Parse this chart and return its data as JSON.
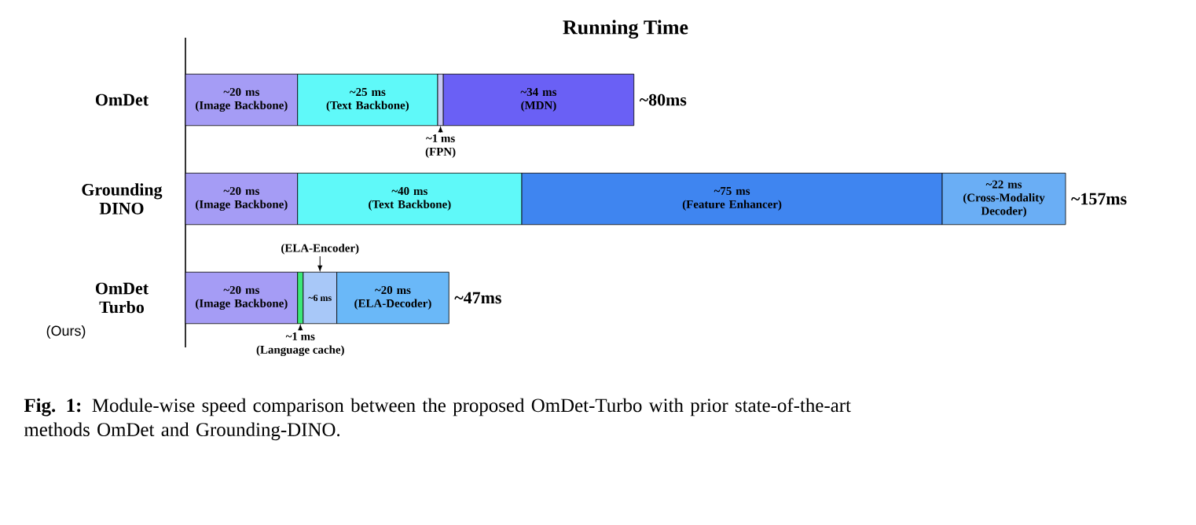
{
  "chart_data": {
    "type": "bar",
    "orientation": "horizontal",
    "stacked": true,
    "title": "Running Time",
    "categories": [
      "OmDet",
      "Grounding DINO",
      "OmDet Turbo"
    ],
    "series": [
      {
        "name": "(Image Backbone)",
        "color": "#a59cf5",
        "values": [
          20,
          20,
          20
        ],
        "value_labels": [
          "~20 ms",
          "~20 ms",
          "~20 ms"
        ]
      },
      {
        "name": "(Text Backbone)",
        "color": "#5ff9f9",
        "values": [
          25,
          40,
          null
        ],
        "value_labels": [
          "~25 ms",
          "~40 ms",
          null
        ]
      },
      {
        "name": "(FPN)",
        "color": "#c8c8f5",
        "values": [
          1,
          null,
          null
        ],
        "value_labels": [
          "~1 ms",
          null,
          null
        ]
      },
      {
        "name": "(MDN)",
        "color": "#6a60f5",
        "values": [
          34,
          null,
          null
        ],
        "value_labels": [
          "~34 ms",
          null,
          null
        ]
      },
      {
        "name": "(Feature Enhancer)",
        "color": "#3f85f0",
        "values": [
          null,
          75,
          null
        ],
        "value_labels": [
          null,
          "~75 ms",
          null
        ]
      },
      {
        "name": "(Cross-Modality Decoder)",
        "color": "#6aaef5",
        "values": [
          null,
          22,
          null
        ],
        "value_labels": [
          null,
          "~22 ms",
          null
        ]
      },
      {
        "name": "(Language cache)",
        "color": "#3ce878",
        "values": [
          null,
          null,
          1
        ],
        "value_labels": [
          null,
          null,
          "~1 ms"
        ]
      },
      {
        "name": "(ELA-Encoder)",
        "color": "#a8c8f8",
        "values": [
          null,
          null,
          6
        ],
        "value_labels": [
          null,
          null,
          "~6 ms"
        ]
      },
      {
        "name": "(ELA-Decoder)",
        "color": "#6ab8f8",
        "values": [
          null,
          null,
          20
        ],
        "value_labels": [
          null,
          null,
          "~20 ms"
        ]
      }
    ],
    "totals": [
      "~80ms",
      "~157ms",
      "~47ms"
    ],
    "annotations": [
      "(Ours)",
      "**Fig. 1:** Module-wise speed comparison between the proposed OmDet-Turbo with prior state-of-the-art methods OmDet and Grounding-DINO."
    ]
  }
}
